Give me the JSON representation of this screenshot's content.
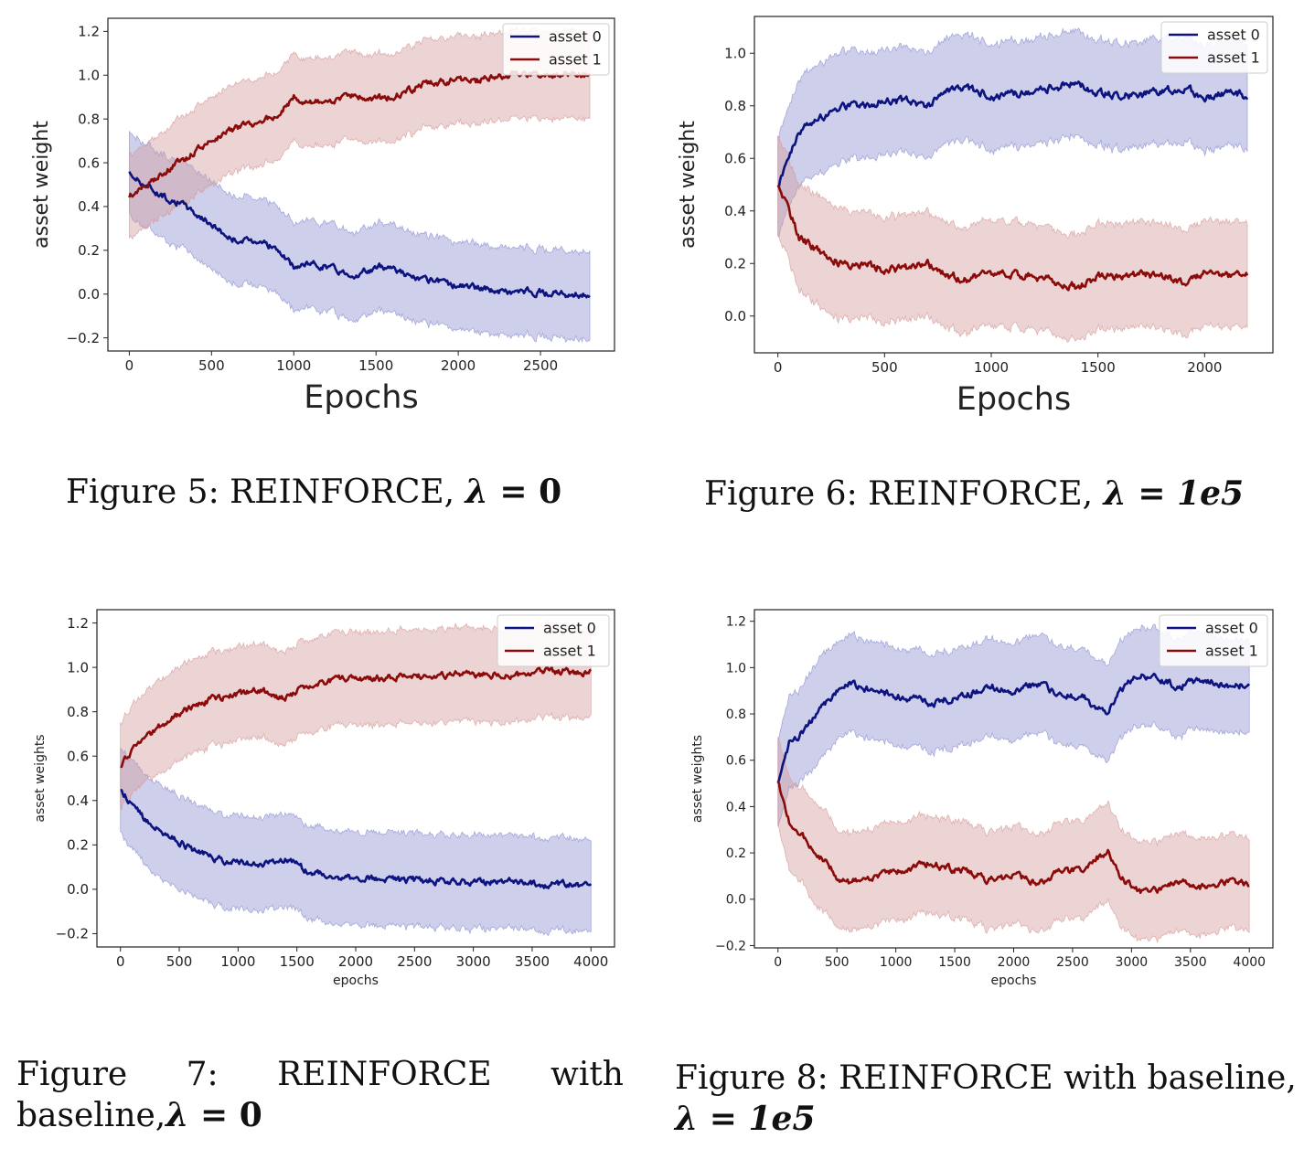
{
  "figures": [
    {
      "caption_prefix": "Figure 5:  REINFORCE, ",
      "caption_lambda": "λ",
      "caption_eq": " = ",
      "caption_value": "0"
    },
    {
      "caption_prefix": "Figure 6:  REINFORCE, ",
      "caption_lambda": "λ",
      "caption_eq": " = ",
      "caption_value": "1e5"
    },
    {
      "caption_words": [
        "Figure",
        "7:",
        "REINFORCE",
        "with"
      ],
      "caption_line2_prefix": "baseline,",
      "caption_lambda": "λ",
      "caption_eq": " = ",
      "caption_value": "0"
    },
    {
      "caption_line1": "Figure 8: REINFORCE with baseline,",
      "caption_lambda": "λ",
      "caption_eq": " = ",
      "caption_value": "1e5"
    }
  ],
  "chart_data": [
    {
      "type": "line",
      "xlabel": "Epochs",
      "ylabel": "asset weight",
      "xlim": [
        -130,
        2950
      ],
      "ylim": [
        -0.26,
        1.26
      ],
      "xticks": [
        0,
        500,
        1000,
        1500,
        2000,
        2500
      ],
      "yticks": [
        -0.2,
        0.0,
        0.2,
        0.4,
        0.6,
        0.8,
        1.0,
        1.2
      ],
      "grid": false,
      "legend": "top-right",
      "x": [
        0,
        100,
        200,
        300,
        400,
        500,
        600,
        700,
        800,
        900,
        1000,
        1100,
        1200,
        1300,
        1400,
        1500,
        1600,
        1700,
        1800,
        1900,
        2000,
        2100,
        2200,
        2300,
        2400,
        2500,
        2600,
        2700,
        2800
      ],
      "series": [
        {
          "name": "asset 0",
          "color": "#0d1480",
          "band_color": "#8a8fd0",
          "values": [
            0.55,
            0.5,
            0.45,
            0.42,
            0.37,
            0.32,
            0.26,
            0.24,
            0.25,
            0.2,
            0.12,
            0.14,
            0.13,
            0.1,
            0.09,
            0.12,
            0.13,
            0.08,
            0.06,
            0.05,
            0.04,
            0.03,
            0.02,
            0.01,
            0.01,
            0.01,
            0.0,
            0.0,
            0.0
          ],
          "lower": [
            0.36,
            0.31,
            0.26,
            0.22,
            0.17,
            0.12,
            0.06,
            0.04,
            0.05,
            0.0,
            -0.08,
            -0.06,
            -0.07,
            -0.1,
            -0.11,
            -0.08,
            -0.07,
            -0.12,
            -0.14,
            -0.15,
            -0.16,
            -0.17,
            -0.18,
            -0.19,
            -0.19,
            -0.19,
            -0.2,
            -0.2,
            -0.2
          ],
          "upper": [
            0.74,
            0.69,
            0.64,
            0.62,
            0.57,
            0.52,
            0.46,
            0.44,
            0.45,
            0.4,
            0.32,
            0.34,
            0.33,
            0.3,
            0.29,
            0.32,
            0.33,
            0.28,
            0.26,
            0.25,
            0.24,
            0.23,
            0.22,
            0.21,
            0.21,
            0.21,
            0.2,
            0.2,
            0.2
          ]
        },
        {
          "name": "asset 1",
          "color": "#8b0a0a",
          "band_color": "#d49898",
          "values": [
            0.45,
            0.5,
            0.55,
            0.6,
            0.65,
            0.7,
            0.74,
            0.77,
            0.79,
            0.82,
            0.9,
            0.87,
            0.88,
            0.9,
            0.9,
            0.89,
            0.9,
            0.93,
            0.96,
            0.97,
            0.98,
            0.97,
            0.99,
            1.0,
            1.0,
            1.0,
            1.0,
            1.0,
            1.0
          ],
          "lower": [
            0.26,
            0.31,
            0.36,
            0.4,
            0.45,
            0.5,
            0.54,
            0.57,
            0.59,
            0.62,
            0.7,
            0.67,
            0.68,
            0.7,
            0.7,
            0.69,
            0.7,
            0.73,
            0.76,
            0.77,
            0.78,
            0.77,
            0.79,
            0.8,
            0.8,
            0.8,
            0.8,
            0.8,
            0.8
          ],
          "upper": [
            0.64,
            0.69,
            0.74,
            0.8,
            0.85,
            0.9,
            0.94,
            0.97,
            0.99,
            1.02,
            1.1,
            1.07,
            1.08,
            1.1,
            1.1,
            1.09,
            1.1,
            1.13,
            1.16,
            1.17,
            1.18,
            1.17,
            1.19,
            1.2,
            1.2,
            1.2,
            1.2,
            1.2,
            1.2
          ]
        }
      ]
    },
    {
      "type": "line",
      "xlabel": "Epochs",
      "ylabel": "asset weight",
      "xlim": [
        -110,
        2320
      ],
      "ylim": [
        -0.14,
        1.14
      ],
      "xticks": [
        0,
        500,
        1000,
        1500,
        2000
      ],
      "yticks": [
        0.0,
        0.2,
        0.4,
        0.6,
        0.8,
        1.0
      ],
      "grid": false,
      "legend": "top-right",
      "x": [
        0,
        50,
        100,
        200,
        300,
        400,
        500,
        600,
        700,
        800,
        900,
        1000,
        1100,
        1200,
        1300,
        1400,
        1500,
        1600,
        1700,
        1800,
        1900,
        2000,
        2100,
        2200
      ],
      "series": [
        {
          "name": "asset 0",
          "color": "#0d1480",
          "band_color": "#8a8fd0",
          "values": [
            0.5,
            0.6,
            0.7,
            0.76,
            0.8,
            0.8,
            0.82,
            0.82,
            0.8,
            0.85,
            0.86,
            0.84,
            0.84,
            0.85,
            0.87,
            0.89,
            0.85,
            0.84,
            0.84,
            0.85,
            0.87,
            0.83,
            0.85,
            0.84
          ],
          "lower": [
            0.31,
            0.41,
            0.5,
            0.55,
            0.59,
            0.6,
            0.62,
            0.62,
            0.6,
            0.65,
            0.66,
            0.64,
            0.64,
            0.65,
            0.67,
            0.69,
            0.65,
            0.64,
            0.64,
            0.65,
            0.67,
            0.63,
            0.65,
            0.64
          ],
          "upper": [
            0.69,
            0.79,
            0.9,
            0.97,
            1.01,
            1.0,
            1.02,
            1.02,
            1.0,
            1.05,
            1.06,
            1.04,
            1.04,
            1.05,
            1.07,
            1.09,
            1.05,
            1.04,
            1.04,
            1.05,
            1.07,
            1.03,
            1.05,
            1.04
          ]
        },
        {
          "name": "asset 1",
          "color": "#8b0a0a",
          "band_color": "#d49898",
          "values": [
            0.5,
            0.4,
            0.3,
            0.24,
            0.2,
            0.2,
            0.18,
            0.18,
            0.2,
            0.15,
            0.14,
            0.16,
            0.16,
            0.15,
            0.13,
            0.11,
            0.15,
            0.16,
            0.16,
            0.15,
            0.13,
            0.17,
            0.15,
            0.16
          ],
          "lower": [
            0.31,
            0.21,
            0.1,
            0.03,
            -0.01,
            0.0,
            -0.02,
            -0.02,
            0.0,
            -0.05,
            -0.06,
            -0.04,
            -0.04,
            -0.05,
            -0.07,
            -0.09,
            -0.05,
            -0.04,
            -0.04,
            -0.05,
            -0.07,
            -0.03,
            -0.05,
            -0.04
          ],
          "upper": [
            0.69,
            0.59,
            0.5,
            0.45,
            0.41,
            0.4,
            0.38,
            0.38,
            0.4,
            0.35,
            0.34,
            0.36,
            0.36,
            0.35,
            0.33,
            0.31,
            0.35,
            0.36,
            0.36,
            0.35,
            0.33,
            0.37,
            0.35,
            0.36
          ]
        }
      ]
    },
    {
      "type": "line",
      "xlabel": "epochs",
      "ylabel": "asset weights",
      "xlim": [
        -200,
        4200
      ],
      "ylim": [
        -0.26,
        1.26
      ],
      "xticks": [
        0,
        500,
        1000,
        1500,
        2000,
        2500,
        3000,
        3500,
        4000
      ],
      "yticks": [
        -0.2,
        0.0,
        0.2,
        0.4,
        0.6,
        0.8,
        1.0,
        1.2
      ],
      "grid": false,
      "legend": "top-right",
      "x": [
        0,
        100,
        200,
        300,
        400,
        600,
        800,
        1000,
        1200,
        1400,
        1600,
        1800,
        2000,
        2200,
        2400,
        2600,
        2800,
        3000,
        3200,
        3400,
        3600,
        3800,
        4000
      ],
      "series": [
        {
          "name": "asset 0",
          "color": "#0d1480",
          "band_color": "#8a8fd0",
          "values": [
            0.45,
            0.38,
            0.32,
            0.28,
            0.24,
            0.18,
            0.14,
            0.12,
            0.11,
            0.14,
            0.08,
            0.06,
            0.05,
            0.05,
            0.04,
            0.04,
            0.03,
            0.03,
            0.03,
            0.04,
            0.02,
            0.02,
            0.02
          ],
          "lower": [
            0.26,
            0.18,
            0.12,
            0.07,
            0.03,
            -0.03,
            -0.07,
            -0.09,
            -0.1,
            -0.07,
            -0.13,
            -0.15,
            -0.16,
            -0.16,
            -0.17,
            -0.17,
            -0.18,
            -0.18,
            -0.18,
            -0.17,
            -0.19,
            -0.19,
            -0.19
          ],
          "upper": [
            0.64,
            0.58,
            0.52,
            0.49,
            0.45,
            0.39,
            0.35,
            0.33,
            0.32,
            0.35,
            0.29,
            0.27,
            0.26,
            0.26,
            0.25,
            0.25,
            0.24,
            0.24,
            0.24,
            0.25,
            0.23,
            0.23,
            0.22
          ]
        },
        {
          "name": "asset 1",
          "color": "#8b0a0a",
          "band_color": "#d49898",
          "values": [
            0.55,
            0.62,
            0.68,
            0.72,
            0.76,
            0.82,
            0.86,
            0.88,
            0.89,
            0.86,
            0.92,
            0.94,
            0.95,
            0.95,
            0.96,
            0.96,
            0.97,
            0.97,
            0.97,
            0.96,
            0.98,
            0.98,
            0.98
          ],
          "lower": [
            0.36,
            0.42,
            0.48,
            0.51,
            0.55,
            0.61,
            0.65,
            0.67,
            0.68,
            0.65,
            0.71,
            0.73,
            0.74,
            0.74,
            0.75,
            0.75,
            0.76,
            0.76,
            0.76,
            0.75,
            0.77,
            0.77,
            0.78
          ],
          "upper": [
            0.74,
            0.82,
            0.88,
            0.93,
            0.97,
            1.03,
            1.07,
            1.09,
            1.1,
            1.07,
            1.13,
            1.15,
            1.16,
            1.16,
            1.17,
            1.17,
            1.18,
            1.18,
            1.18,
            1.17,
            1.19,
            1.19,
            1.18
          ]
        }
      ]
    },
    {
      "type": "line",
      "xlabel": "epochs",
      "ylabel": "asset weights",
      "xlim": [
        -200,
        4200
      ],
      "ylim": [
        -0.21,
        1.25
      ],
      "xticks": [
        0,
        500,
        1000,
        1500,
        2000,
        2500,
        3000,
        3500,
        4000
      ],
      "yticks": [
        -0.2,
        0.0,
        0.2,
        0.4,
        0.6,
        0.8,
        1.0,
        1.2
      ],
      "grid": false,
      "legend": "top-right",
      "x": [
        0,
        100,
        200,
        300,
        400,
        500,
        600,
        800,
        1000,
        1200,
        1300,
        1400,
        1600,
        1800,
        2000,
        2200,
        2400,
        2600,
        2700,
        2800,
        2900,
        3000,
        3100,
        3200,
        3400,
        3600,
        3800,
        4000
      ],
      "series": [
        {
          "name": "asset 0",
          "color": "#0d1480",
          "band_color": "#8a8fd0",
          "values": [
            0.5,
            0.68,
            0.72,
            0.78,
            0.84,
            0.9,
            0.93,
            0.9,
            0.88,
            0.86,
            0.84,
            0.86,
            0.88,
            0.92,
            0.9,
            0.93,
            0.88,
            0.87,
            0.82,
            0.8,
            0.9,
            0.95,
            0.97,
            0.96,
            0.92,
            0.95,
            0.92,
            0.93
          ],
          "lower": [
            0.31,
            0.48,
            0.52,
            0.56,
            0.62,
            0.69,
            0.72,
            0.69,
            0.67,
            0.65,
            0.63,
            0.65,
            0.67,
            0.71,
            0.69,
            0.72,
            0.67,
            0.66,
            0.61,
            0.59,
            0.69,
            0.74,
            0.76,
            0.75,
            0.71,
            0.74,
            0.72,
            0.73
          ],
          "upper": [
            0.69,
            0.88,
            0.92,
            1.0,
            1.06,
            1.11,
            1.14,
            1.11,
            1.09,
            1.07,
            1.05,
            1.07,
            1.09,
            1.13,
            1.11,
            1.14,
            1.09,
            1.08,
            1.03,
            1.01,
            1.11,
            1.16,
            1.18,
            1.17,
            1.13,
            1.16,
            1.12,
            1.13
          ]
        },
        {
          "name": "asset 1",
          "color": "#8b0a0a",
          "band_color": "#d49898",
          "values": [
            0.5,
            0.32,
            0.28,
            0.22,
            0.16,
            0.1,
            0.07,
            0.1,
            0.12,
            0.14,
            0.16,
            0.14,
            0.12,
            0.08,
            0.1,
            0.07,
            0.12,
            0.13,
            0.18,
            0.2,
            0.1,
            0.05,
            0.03,
            0.04,
            0.08,
            0.05,
            0.08,
            0.07
          ],
          "lower": [
            0.31,
            0.12,
            0.08,
            0.0,
            -0.06,
            -0.11,
            -0.14,
            -0.11,
            -0.09,
            -0.07,
            -0.05,
            -0.07,
            -0.09,
            -0.13,
            -0.11,
            -0.14,
            -0.09,
            -0.08,
            -0.03,
            -0.01,
            -0.11,
            -0.16,
            -0.18,
            -0.17,
            -0.13,
            -0.16,
            -0.12,
            -0.13
          ],
          "upper": [
            0.69,
            0.52,
            0.48,
            0.44,
            0.38,
            0.31,
            0.28,
            0.31,
            0.33,
            0.35,
            0.37,
            0.35,
            0.33,
            0.29,
            0.31,
            0.28,
            0.33,
            0.34,
            0.39,
            0.41,
            0.31,
            0.26,
            0.24,
            0.25,
            0.29,
            0.26,
            0.28,
            0.27
          ]
        }
      ]
    }
  ]
}
